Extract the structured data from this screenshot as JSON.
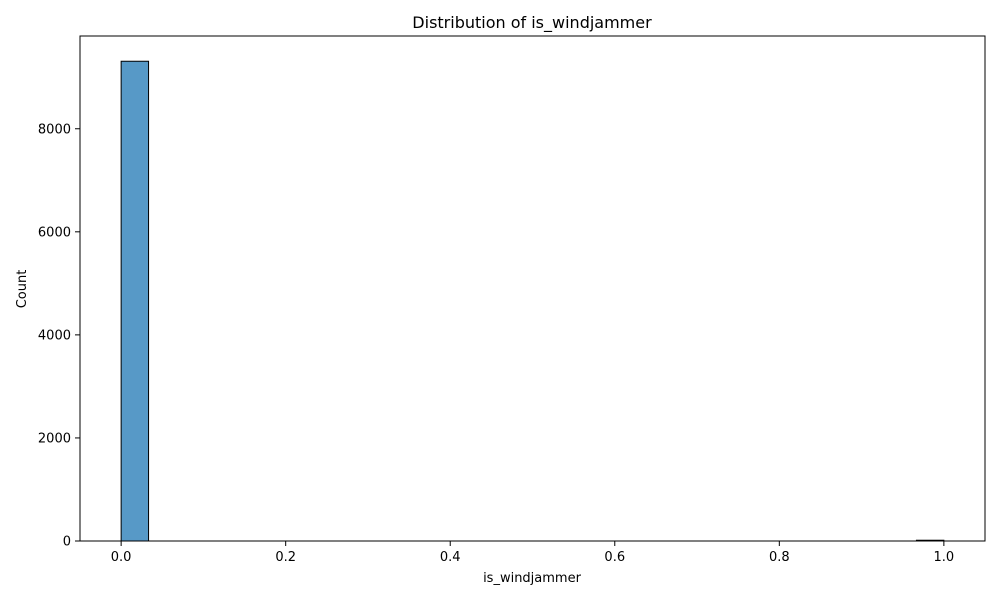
{
  "chart_data": {
    "type": "bar",
    "title": "Distribution of is_windjammer",
    "xlabel": "is_windjammer",
    "ylabel": "Count",
    "bins": [
      {
        "x0": 0.0,
        "x1": 0.03333,
        "count": 9310
      },
      {
        "x0": 0.96667,
        "x1": 1.0,
        "count": 15
      }
    ],
    "xlim": [
      -0.05,
      1.05
    ],
    "ylim": [
      0,
      9800
    ],
    "xticks": [
      0.0,
      0.2,
      0.4,
      0.6,
      0.8,
      1.0
    ],
    "xtick_labels": [
      "0.0",
      "0.2",
      "0.4",
      "0.6",
      "0.8",
      "1.0"
    ],
    "yticks": [
      0,
      2000,
      4000,
      6000,
      8000
    ],
    "ytick_labels": [
      "0",
      "2000",
      "4000",
      "6000",
      "8000"
    ],
    "grid": false,
    "colors": {
      "bar_fill": "#5799c7",
      "bar_edge": "#000000"
    }
  }
}
